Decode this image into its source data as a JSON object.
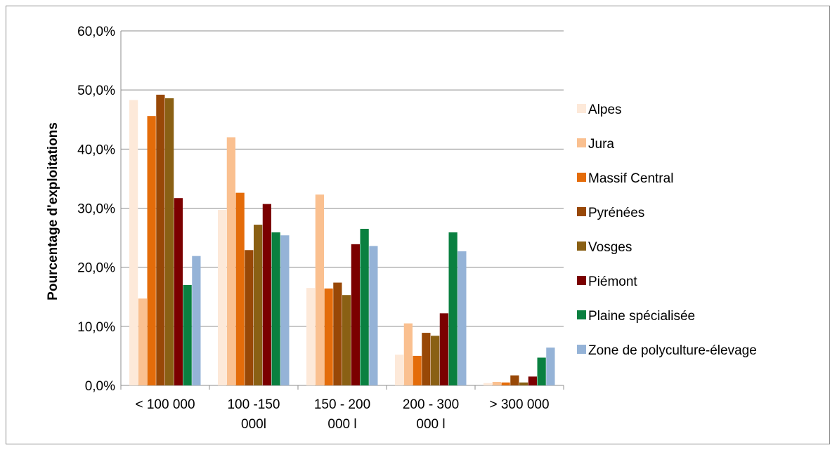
{
  "chart_data": {
    "type": "bar",
    "title": "",
    "xlabel": "",
    "ylabel": "Pourcentage d'exploitations",
    "ylim": [
      0,
      60
    ],
    "y_ticks": [
      "0,0%",
      "10,0%",
      "20,0%",
      "30,0%",
      "40,0%",
      "50,0%",
      "60,0%"
    ],
    "grid": true,
    "legend_position": "right",
    "categories": [
      [
        "< 100 000"
      ],
      [
        "100 -150",
        "000l"
      ],
      [
        "150 - 200",
        "000 l"
      ],
      [
        "200 - 300",
        "000 l"
      ],
      [
        "> 300 000"
      ]
    ],
    "series": [
      {
        "name": "Alpes",
        "color": "#fde9d9",
        "values": [
          48.3,
          29.7,
          16.5,
          5.2,
          0.4
        ]
      },
      {
        "name": "Jura",
        "color": "#fac090",
        "values": [
          14.7,
          42.0,
          32.3,
          10.5,
          0.6
        ]
      },
      {
        "name": "Massif Central",
        "color": "#e46c0a",
        "values": [
          45.6,
          32.6,
          16.4,
          5.0,
          0.5
        ]
      },
      {
        "name": "Pyrénées",
        "color": "#984807",
        "values": [
          49.2,
          22.9,
          17.4,
          8.9,
          1.7
        ]
      },
      {
        "name": "Vosges",
        "color": "#8a6014",
        "values": [
          48.6,
          27.2,
          15.3,
          8.4,
          0.5
        ]
      },
      {
        "name": "Piémont",
        "color": "#7b0000",
        "values": [
          31.7,
          30.7,
          23.9,
          12.2,
          1.5
        ]
      },
      {
        "name": "Plaine spécialisée",
        "color": "#0a8040",
        "values": [
          17.0,
          25.9,
          26.5,
          25.9,
          4.7
        ]
      },
      {
        "name": "Zone de polyculture-élevage",
        "color": "#95b3d7",
        "values": [
          21.9,
          25.4,
          23.6,
          22.7,
          6.4
        ]
      }
    ]
  }
}
